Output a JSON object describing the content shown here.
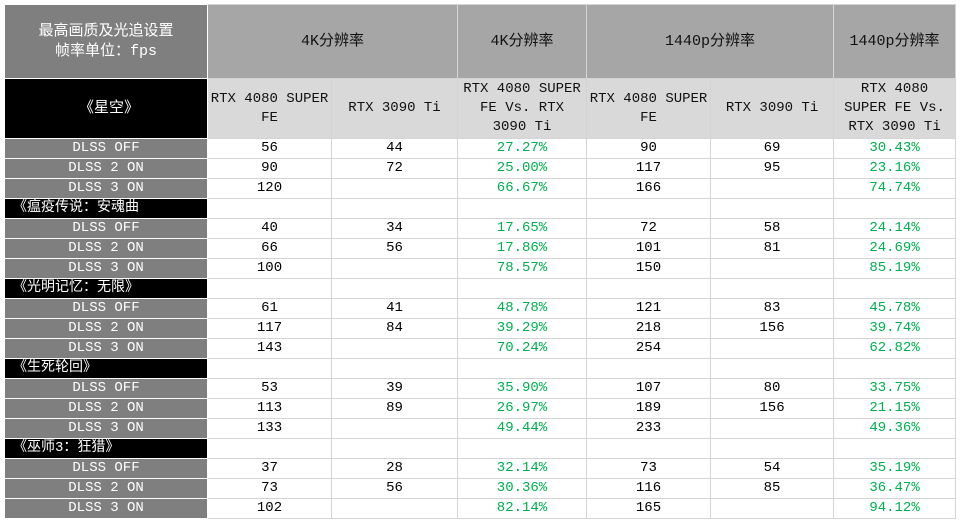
{
  "header": {
    "corner": [
      "最高画质及光追设置",
      "帧率单位：fps"
    ],
    "groups": [
      "4K分辨率",
      "4K分辨率",
      "1440p分辨率",
      "1440p分辨率"
    ],
    "columns": [
      "RTX 4080 SUPER FE",
      "RTX 3090 Ti",
      "RTX 4080 SUPER FE Vs. RTX 3090 Ti",
      "RTX 4080 SUPER FE",
      "RTX 3090 Ti",
      "RTX 4080 SUPER FE Vs. RTX 3090 Ti"
    ]
  },
  "games": [
    {
      "name": "《星空》",
      "rows": [
        {
          "label": "DLSS OFF",
          "cells": [
            "56",
            "44",
            "27.27%",
            "90",
            "69",
            "30.43%"
          ]
        },
        {
          "label": "DLSS 2 ON",
          "cells": [
            "90",
            "72",
            "25.00%",
            "117",
            "95",
            "23.16%"
          ]
        },
        {
          "label": "DLSS 3 ON",
          "cells": [
            "120",
            null,
            "66.67%",
            "166",
            null,
            "74.74%"
          ]
        }
      ]
    },
    {
      "name": "《瘟疫传说：安魂曲",
      "rows": [
        {
          "label": "DLSS OFF",
          "cells": [
            "40",
            "34",
            "17.65%",
            "72",
            "58",
            "24.14%"
          ]
        },
        {
          "label": "DLSS 2 ON",
          "cells": [
            "66",
            "56",
            "17.86%",
            "101",
            "81",
            "24.69%"
          ]
        },
        {
          "label": "DLSS 3 ON",
          "cells": [
            "100",
            null,
            "78.57%",
            "150",
            null,
            "85.19%"
          ]
        }
      ]
    },
    {
      "name": "《光明记忆：无限》",
      "rows": [
        {
          "label": "DLSS OFF",
          "cells": [
            "61",
            "41",
            "48.78%",
            "121",
            "83",
            "45.78%"
          ]
        },
        {
          "label": "DLSS 2 ON",
          "cells": [
            "117",
            "84",
            "39.29%",
            "218",
            "156",
            "39.74%"
          ]
        },
        {
          "label": "DLSS 3 ON",
          "cells": [
            "143",
            null,
            "70.24%",
            "254",
            null,
            "62.82%"
          ]
        }
      ]
    },
    {
      "name": "《生死轮回》",
      "rows": [
        {
          "label": "DLSS OFF",
          "cells": [
            "53",
            "39",
            "35.90%",
            "107",
            "80",
            "33.75%"
          ]
        },
        {
          "label": "DLSS 2 ON",
          "cells": [
            "113",
            "89",
            "26.97%",
            "189",
            "156",
            "21.15%"
          ]
        },
        {
          "label": "DLSS 3 ON",
          "cells": [
            "133",
            null,
            "49.44%",
            "233",
            null,
            "49.36%"
          ]
        }
      ]
    },
    {
      "name": "《巫师3：狂猎》",
      "rows": [
        {
          "label": "DLSS OFF",
          "cells": [
            "37",
            "28",
            "32.14%",
            "73",
            "54",
            "35.19%"
          ]
        },
        {
          "label": "DLSS 2 ON",
          "cells": [
            "73",
            "56",
            "30.36%",
            "116",
            "85",
            "36.47%"
          ]
        },
        {
          "label": "DLSS 3 ON",
          "cells": [
            "102",
            null,
            "82.14%",
            "165",
            null,
            "94.12%"
          ]
        }
      ]
    }
  ]
}
